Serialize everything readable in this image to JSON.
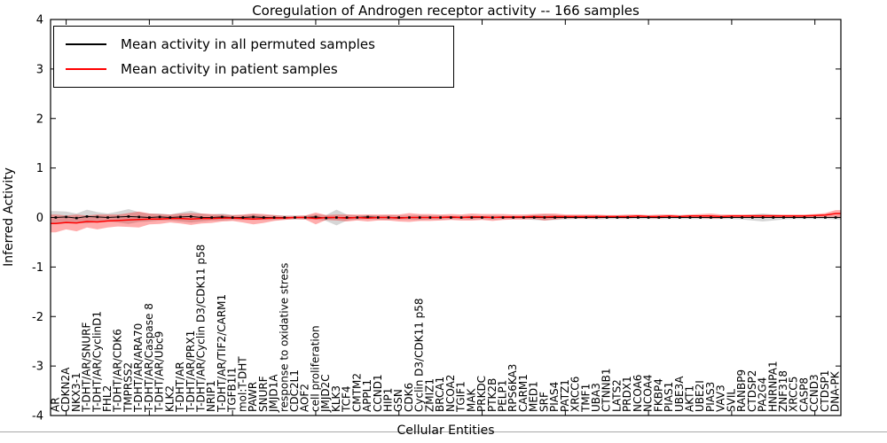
{
  "chart_data": {
    "type": "line",
    "title": "Coregulation of Androgen receptor activity -- 166 samples",
    "xlabel": "Cellular Entities",
    "ylabel": "Inferred Activity",
    "ylim": [
      -4,
      4
    ],
    "yticks": [
      -4,
      -3,
      -2,
      -1,
      0,
      1,
      2,
      3,
      4
    ],
    "grid": false,
    "legend_position": "upper left",
    "categories": [
      "AR",
      "CDKN2A",
      "NKX3-1",
      "T-DHT/AR/SNURF",
      "T-DHT/AR/CyclinD1",
      "FHL2",
      "T-DHT/AR/CDK6",
      "TMPRSS2",
      "T-DHT/AR/ARA70",
      "T-DHT/AR/Caspase 8",
      "T-DHT/AR/Ubc9",
      "KLK2",
      "T-DHT/AR",
      "T-DHT/AR/PRX1",
      "T-DHT/AR/Cyclin D3/CDK11 p58",
      "NRIP1",
      "T-DHT/AR/TIF2/CARM1",
      "TGFB1I1",
      "mol:T-DHT",
      "PAWR",
      "SNURF",
      "JMJD1A",
      "response to oxidative stress",
      "CDC2L1",
      "AOF2",
      "cell proliferation",
      "JMJD2C",
      "KLK3",
      "TCF4",
      "CMTM2",
      "APPL1",
      "CCND1",
      "HIP1",
      "GSN",
      "CDK6",
      "Cyclin D3/CDK11 p58",
      "ZMIZ1",
      "BRCA1",
      "NCOA2",
      "TGIF1",
      "MAK",
      "PRKDC",
      "PTK2B",
      "PELP1",
      "RPS6KA3",
      "CARM1",
      "MED1",
      "SRF",
      "PIAS4",
      "PATZ1",
      "XRCC6",
      "TMF1",
      "UBA3",
      "CTNNB1",
      "LATS2",
      "PRDX1",
      "NCOA6",
      "NCOA4",
      "FKBP4",
      "PIAS1",
      "UBE3A",
      "AKT1",
      "UBE2I",
      "PIAS3",
      "VAV3",
      "SVIL",
      "RANBP9",
      "CTDSP2",
      "PA2G4",
      "HNRNPA1",
      "ZNF318",
      "XRCC5",
      "CASP8",
      "CCND3",
      "CTDSP1",
      "DNA-PK"
    ],
    "series": [
      {
        "name": "Mean activity in all permuted samples",
        "color": "#000000",
        "band_color": "#999999",
        "band_opacity": 0.4,
        "mean": [
          0,
          0.01,
          -0.01,
          0.02,
          0.01,
          0,
          0.01,
          0.02,
          0.01,
          0,
          0.01,
          0,
          0.01,
          0.02,
          0,
          0,
          0.01,
          0,
          0,
          0.01,
          0,
          0,
          0,
          0,
          0,
          0.01,
          -0.01,
          0,
          0,
          0,
          0.01,
          0,
          0,
          0,
          0,
          0,
          0,
          0,
          0,
          0,
          0,
          0,
          0,
          0,
          0,
          0,
          0,
          0,
          0,
          0,
          0,
          0,
          0,
          0,
          0,
          0,
          0,
          0,
          0,
          0,
          0,
          0,
          0,
          0,
          0,
          0,
          0,
          0,
          0,
          0,
          0,
          0,
          0,
          0,
          0,
          0
        ],
        "halfwidth": [
          0.13,
          0.11,
          0.09,
          0.14,
          0.1,
          0.08,
          0.11,
          0.15,
          0.1,
          0.08,
          0.07,
          0.06,
          0.09,
          0.12,
          0.08,
          0.06,
          0.07,
          0.05,
          0.05,
          0.06,
          0.05,
          0.05,
          0.04,
          0.04,
          0.04,
          0.05,
          0.06,
          0.16,
          0.06,
          0.04,
          0.04,
          0.04,
          0.05,
          0.04,
          0.04,
          0.05,
          0.04,
          0.04,
          0.03,
          0.03,
          0.04,
          0.03,
          0.04,
          0.03,
          0.03,
          0.03,
          0.05,
          0.06,
          0.05,
          0.04,
          0.03,
          0.03,
          0.04,
          0.03,
          0.03,
          0.03,
          0.03,
          0.03,
          0.03,
          0.03,
          0.03,
          0.03,
          0.03,
          0.03,
          0.03,
          0.03,
          0.04,
          0.06,
          0.08,
          0.06,
          0.04,
          0.03,
          0.03,
          0.03,
          0.03,
          0.04
        ]
      },
      {
        "name": "Mean activity in patient samples",
        "color": "#ff0000",
        "band_color": "#ff0000",
        "band_opacity": 0.32,
        "mean": [
          -0.12,
          -0.1,
          -0.11,
          -0.08,
          -0.09,
          -0.07,
          -0.06,
          -0.05,
          -0.04,
          -0.03,
          -0.03,
          -0.02,
          -0.02,
          -0.03,
          -0.02,
          -0.02,
          -0.01,
          -0.01,
          -0.02,
          -0.03,
          -0.02,
          -0.01,
          -0.01,
          0,
          0,
          -0.02,
          0,
          0,
          -0.01,
          0,
          -0.01,
          0,
          0,
          -0.01,
          0,
          0,
          0,
          0,
          0.01,
          0,
          0.01,
          0.01,
          0,
          0.01,
          0.01,
          0.01,
          0.02,
          0.01,
          0.02,
          0.02,
          0.02,
          0.02,
          0.02,
          0.02,
          0.02,
          0.02,
          0.03,
          0.02,
          0.02,
          0.03,
          0.02,
          0.03,
          0.03,
          0.03,
          0.02,
          0.03,
          0.03,
          0.03,
          0.03,
          0.03,
          0.03,
          0.03,
          0.03,
          0.04,
          0.05,
          0.08
        ],
        "halfwidth": [
          0.18,
          0.14,
          0.17,
          0.12,
          0.15,
          0.13,
          0.12,
          0.14,
          0.16,
          0.11,
          0.1,
          0.08,
          0.1,
          0.12,
          0.1,
          0.09,
          0.07,
          0.06,
          0.08,
          0.11,
          0.09,
          0.06,
          0.04,
          0.03,
          0.04,
          0.12,
          0.05,
          0.06,
          0.07,
          0.06,
          0.07,
          0.06,
          0.06,
          0.07,
          0.09,
          0.07,
          0.07,
          0.06,
          0.06,
          0.06,
          0.07,
          0.06,
          0.07,
          0.06,
          0.05,
          0.05,
          0.05,
          0.07,
          0.06,
          0.04,
          0.04,
          0.04,
          0.04,
          0.03,
          0.03,
          0.04,
          0.03,
          0.03,
          0.04,
          0.03,
          0.03,
          0.03,
          0.04,
          0.05,
          0.04,
          0.03,
          0.03,
          0.03,
          0.03,
          0.03,
          0.03,
          0.03,
          0.03,
          0.03,
          0.04,
          0.07
        ]
      }
    ]
  }
}
